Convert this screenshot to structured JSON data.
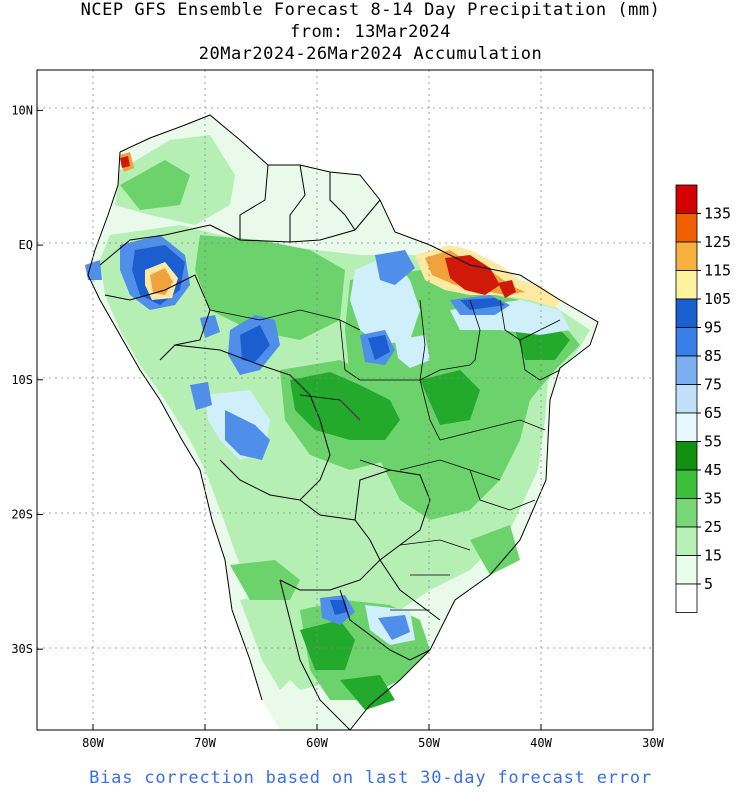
{
  "title": {
    "line1": "NCEP GFS Ensemble Forecast 8-14 Day Precipitation (mm)",
    "line2": "from: 13Mar2024",
    "line3": "20Mar2024-26Mar2024 Accumulation"
  },
  "footer": "Bias correction based on last 30-day forecast error",
  "axes": {
    "lat_labels": [
      "10N",
      "EQ",
      "10S",
      "20S",
      "30S"
    ],
    "lon_labels": [
      "80W",
      "70W",
      "60W",
      "50W",
      "40W",
      "30W"
    ],
    "lat_values": [
      10,
      0,
      -10,
      -20,
      -30
    ],
    "lon_values": [
      -80,
      -70,
      -60,
      -50,
      -40,
      -30
    ],
    "lon_range": [
      -85,
      -30
    ],
    "lat_range": [
      -36,
      13
    ],
    "gridlines": "dotted"
  },
  "colorbar": {
    "labels": [
      "135",
      "125",
      "115",
      "105",
      "95",
      "85",
      "75",
      "65",
      "55",
      "45",
      "35",
      "25",
      "15",
      "5"
    ],
    "colors": [
      "#d40000",
      "#f06000",
      "#f8b040",
      "#fff3a0",
      "#1a5fd0",
      "#3a7ee8",
      "#7ab0f0",
      "#c0e0f8",
      "#e8f8ff",
      "#119011",
      "#3cc03c",
      "#78d878",
      "#b8f0b8",
      "#eafcea",
      "#ffffff"
    ]
  },
  "colors": {
    "land": "#e9f9ea",
    "light_green": "#b6efb4",
    "mid_green": "#6cd36c",
    "dark_green": "#23a92b",
    "light_blue": "#cfeffb",
    "blue": "#4f8ee9",
    "dark_blue": "#1c5ecf",
    "yellow": "#fde9a2",
    "orange": "#f0a23c",
    "red": "#cf1a0a",
    "footer": "#3a6ee8"
  }
}
